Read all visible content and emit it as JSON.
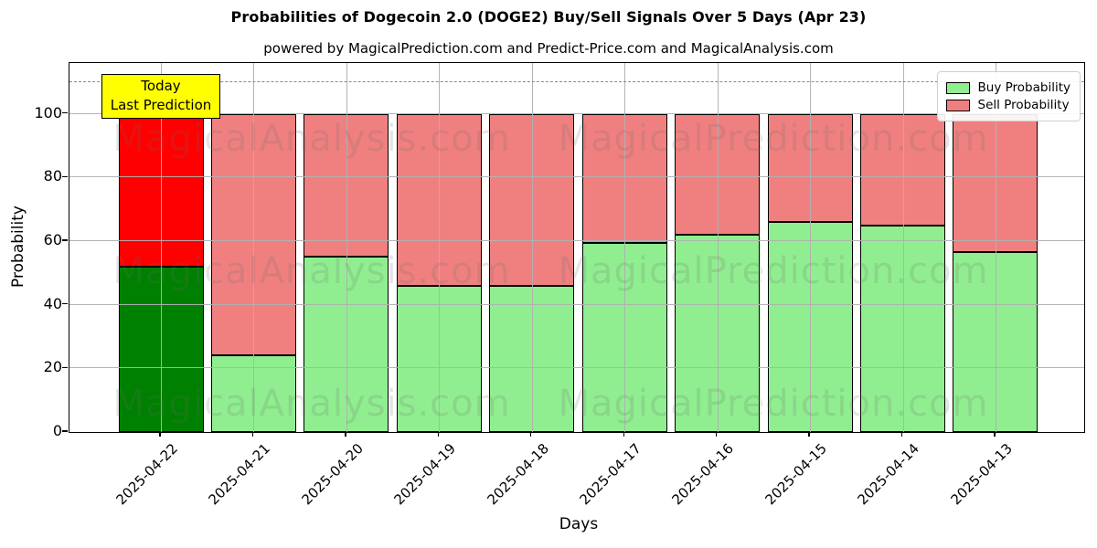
{
  "title": "Probabilities of Dogecoin 2.0 (DOGE2) Buy/Sell Signals Over 5 Days (Apr 23)",
  "subtitle": "powered by MagicalPrediction.com and Predict-Price.com and MagicalAnalysis.com",
  "annotation": {
    "line1": "Today",
    "line2": "Last Prediction",
    "bg_color": "#ffff00"
  },
  "legend": [
    {
      "label": "Buy Probability",
      "color": "#90ee90"
    },
    {
      "label": "Sell Probability",
      "color": "#f08080"
    }
  ],
  "watermarks": {
    "left": "MagicalAnalysis.com",
    "right": "MagicalPrediction.com"
  },
  "colors": {
    "buy": "#90ee90",
    "sell": "#f08080",
    "today_buy": "#008000",
    "today_sell": "#ff0000",
    "grid": "#b0b0b0",
    "dashed_line": "#8a8a8a"
  },
  "chart_data": {
    "type": "bar",
    "stacked": true,
    "title": "Probabilities of Dogecoin 2.0 (DOGE2) Buy/Sell Signals Over 5 Days (Apr 23)",
    "subtitle": "powered by MagicalPrediction.com and Predict-Price.com and MagicalAnalysis.com",
    "categories": [
      "2025-04-22",
      "2025-04-21",
      "2025-04-20",
      "2025-04-19",
      "2025-04-18",
      "2025-04-17",
      "2025-04-16",
      "2025-04-15",
      "2025-04-14",
      "2025-04-13"
    ],
    "series": [
      {
        "name": "Buy Probability",
        "values": [
          52,
          24,
          55,
          46,
          46,
          59.5,
          62,
          66,
          65,
          56.5
        ]
      },
      {
        "name": "Sell Probability",
        "values": [
          48,
          76,
          45,
          54,
          54,
          40.5,
          38,
          34,
          35,
          43.5
        ]
      }
    ],
    "bar_totals": [
      100,
      100,
      100,
      100,
      100,
      100,
      100,
      100,
      100,
      100
    ],
    "xlabel": "Days",
    "ylabel": "Probability",
    "yticks": [
      0,
      20,
      40,
      60,
      80,
      100
    ],
    "ylim": [
      0,
      116
    ],
    "dashed_line_y": 110,
    "grid": true,
    "legend_position": "upper right",
    "today_index": 0
  }
}
